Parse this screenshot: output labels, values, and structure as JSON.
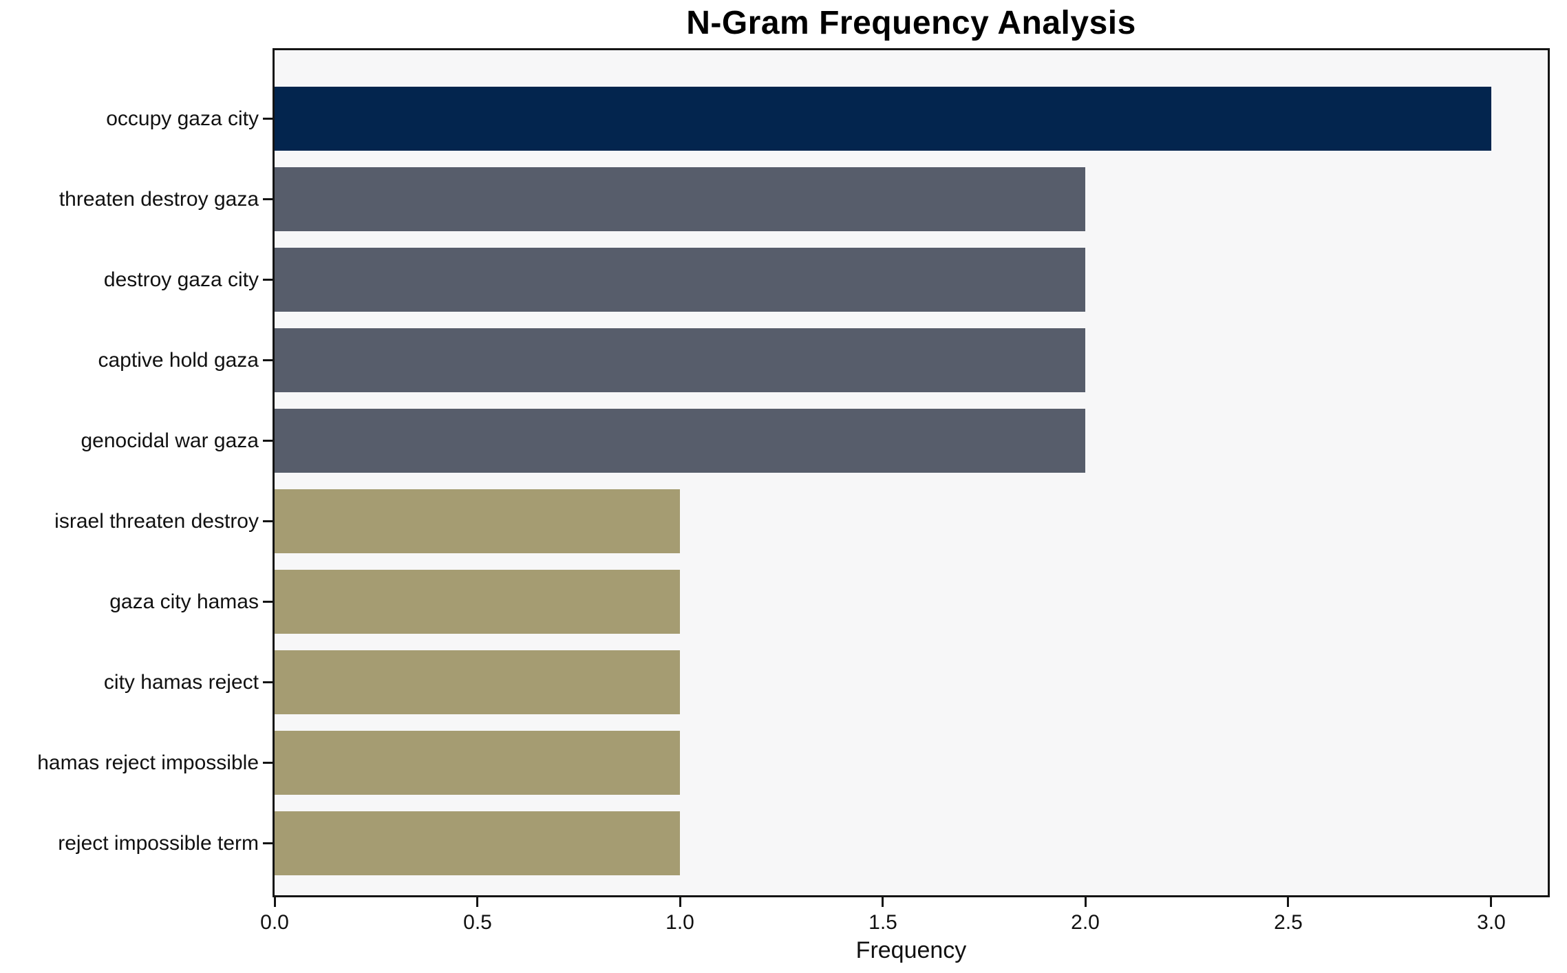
{
  "chart_data": {
    "type": "bar",
    "orientation": "horizontal",
    "title": "N-Gram Frequency Analysis",
    "xlabel": "Frequency",
    "categories": [
      "occupy gaza city",
      "threaten destroy gaza",
      "destroy gaza city",
      "captive hold gaza",
      "genocidal war gaza",
      "israel threaten destroy",
      "gaza city hamas",
      "city hamas reject",
      "hamas reject impossible",
      "reject impossible term"
    ],
    "values": [
      3,
      2,
      2,
      2,
      2,
      1,
      1,
      1,
      1,
      1
    ],
    "bar_colors": [
      "#03254e",
      "#575d6b",
      "#575d6b",
      "#575d6b",
      "#575d6b",
      "#a59c72",
      "#a59c72",
      "#a59c72",
      "#a59c72",
      "#a59c72"
    ],
    "x_ticks": [
      0.0,
      0.5,
      1.0,
      1.5,
      2.0,
      2.5,
      3.0
    ],
    "x_tick_labels": [
      "0.0",
      "0.5",
      "1.0",
      "1.5",
      "2.0",
      "2.5",
      "3.0"
    ],
    "xlim": [
      0,
      3.14
    ],
    "grid": false,
    "legend": false,
    "plot_background": "#f7f7f8",
    "figure_background": "#ffffff",
    "spine_color": "#141414",
    "text_color": "#111111"
  }
}
